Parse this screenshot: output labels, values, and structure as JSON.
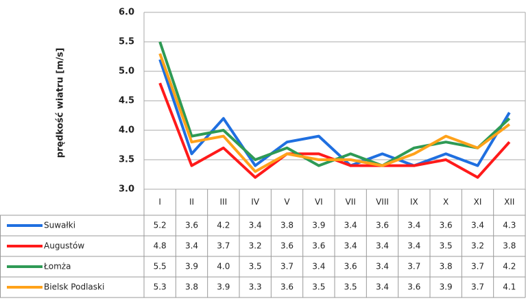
{
  "chart_data": {
    "type": "line",
    "y_label": "prędkość wiatru [m/s]",
    "categories": [
      "I",
      "II",
      "III",
      "IV",
      "V",
      "VI",
      "VII",
      "VIII",
      "IX",
      "X",
      "XI",
      "XII"
    ],
    "ylim": [
      3.0,
      6.0
    ],
    "yticks": [
      {
        "value": 3.0,
        "label": "3.0"
      },
      {
        "value": 3.5,
        "label": "3.5"
      },
      {
        "value": 4.0,
        "label": "4.0"
      },
      {
        "value": 4.5,
        "label": "4.5"
      },
      {
        "value": 5.0,
        "label": "5.0"
      },
      {
        "value": 5.5,
        "label": "5.5"
      },
      {
        "value": 6.0,
        "label": "6.0"
      }
    ],
    "grid": true,
    "series": [
      {
        "name": "Suwałki",
        "color": "#1f6fe0",
        "values": [
          5.2,
          3.6,
          4.2,
          3.4,
          3.8,
          3.9,
          3.4,
          3.6,
          3.4,
          3.6,
          3.4,
          4.3
        ],
        "value_labels": [
          "5.2",
          "3.6",
          "4.2",
          "3.4",
          "3.8",
          "3.9",
          "3.4",
          "3.6",
          "3.4",
          "3.6",
          "3.4",
          "4.3"
        ]
      },
      {
        "name": "Augustów",
        "color": "#ff1a1a",
        "values": [
          4.8,
          3.4,
          3.7,
          3.2,
          3.6,
          3.6,
          3.4,
          3.4,
          3.4,
          3.5,
          3.2,
          3.8
        ],
        "value_labels": [
          "4.8",
          "3.4",
          "3.7",
          "3.2",
          "3.6",
          "3.6",
          "3.4",
          "3.4",
          "3.4",
          "3.5",
          "3.2",
          "3.8"
        ]
      },
      {
        "name": "Łomża",
        "color": "#2e9a55",
        "values": [
          5.5,
          3.9,
          4.0,
          3.5,
          3.7,
          3.4,
          3.6,
          3.4,
          3.7,
          3.8,
          3.7,
          4.2
        ],
        "value_labels": [
          "5.5",
          "3.9",
          "4.0",
          "3.5",
          "3.7",
          "3.4",
          "3.6",
          "3.4",
          "3.7",
          "3.8",
          "3.7",
          "4.2"
        ]
      },
      {
        "name": "Bielsk Podlaski",
        "color": "#ffa21a",
        "values": [
          5.3,
          3.8,
          3.9,
          3.3,
          3.6,
          3.5,
          3.5,
          3.4,
          3.6,
          3.9,
          3.7,
          4.1
        ],
        "value_labels": [
          "5.3",
          "3.8",
          "3.9",
          "3.3",
          "3.6",
          "3.5",
          "3.5",
          "3.4",
          "3.6",
          "3.9",
          "3.7",
          "4.1"
        ]
      }
    ]
  }
}
